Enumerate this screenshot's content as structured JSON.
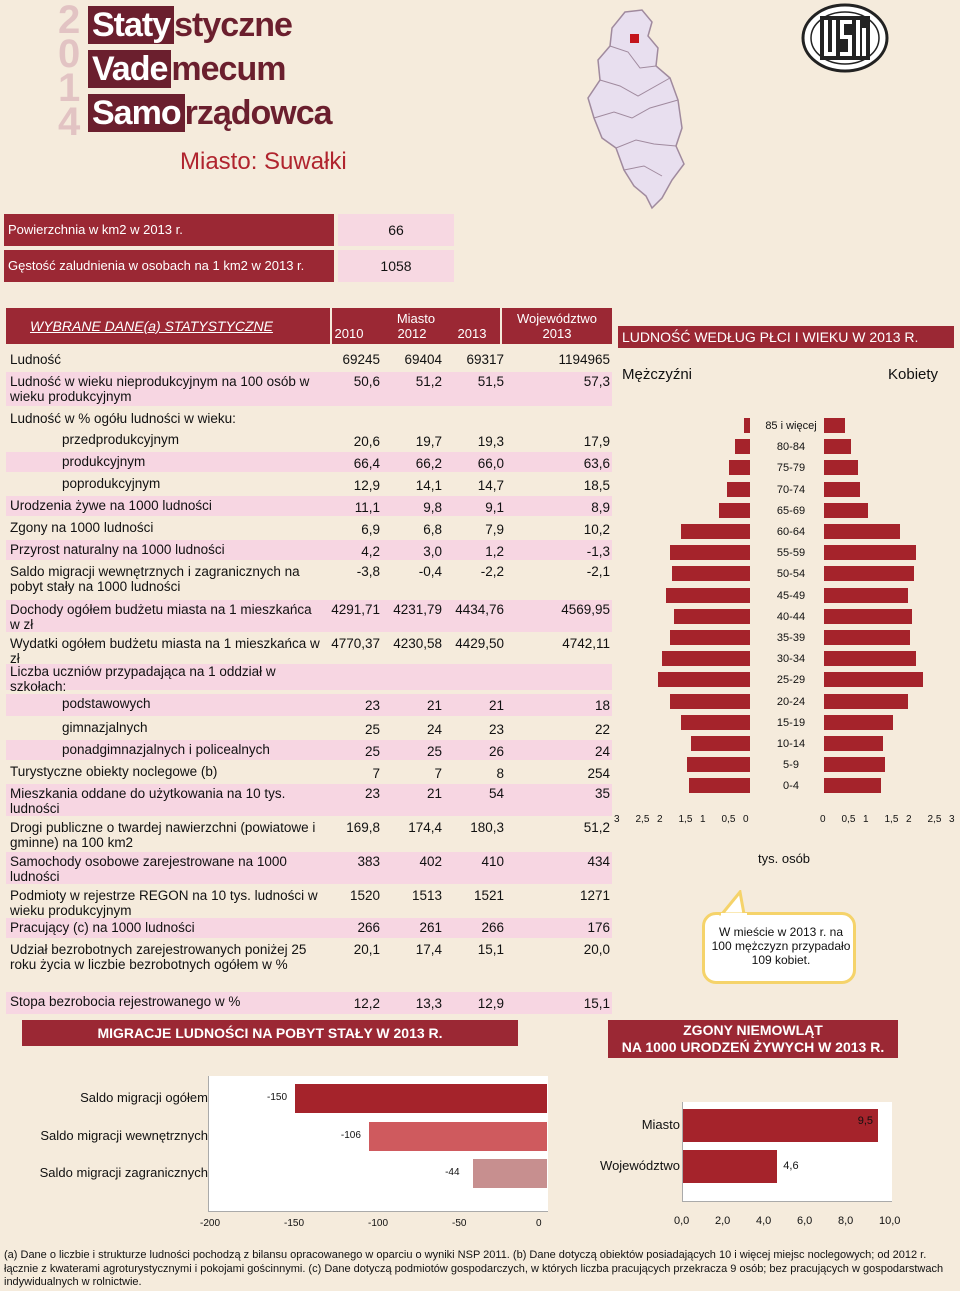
{
  "header": {
    "year_digits": [
      "2",
      "0",
      "1",
      "4"
    ],
    "logo_lines": [
      {
        "dark": "Staty",
        "rest": "styczne"
      },
      {
        "dark": "Vade",
        "rest": "mecum"
      },
      {
        "dark": "Samo",
        "rest": "rządowca"
      }
    ],
    "city_title": "Miasto: Suwałki"
  },
  "area": [
    {
      "label": "Powierzchnia w km2 w 2013 r.",
      "value": "66"
    },
    {
      "label": "Gęstość zaludnienia w osobach na 1 km2 w 2013 r.",
      "value": "1058"
    }
  ],
  "table": {
    "title": "WYBRANE DANE(a) STATYSTYCZNE",
    "group_city": "Miasto",
    "group_voiv": "Województwo",
    "years": [
      "2010",
      "2012",
      "2013"
    ],
    "voiv_year": "2013",
    "rows": [
      {
        "name": "Ludność",
        "indent": false,
        "pink": false,
        "v": [
          "69245",
          "69404",
          "69317",
          "1194965"
        ]
      },
      {
        "name": "Ludność w wieku nieprodukcyjnym na 100 osób w wieku produkcyjnym",
        "indent": false,
        "pink": true,
        "v": [
          "50,6",
          "51,2",
          "51,5",
          "57,3"
        ]
      },
      {
        "name": "Ludność w % ogółu ludności w wieku:",
        "indent": false,
        "pink": false,
        "v": [
          "",
          "",
          "",
          ""
        ]
      },
      {
        "name": "przedprodukcyjnym",
        "indent": true,
        "pink": false,
        "v": [
          "20,6",
          "19,7",
          "19,3",
          "17,9"
        ]
      },
      {
        "name": "produkcyjnym",
        "indent": true,
        "pink": true,
        "v": [
          "66,4",
          "66,2",
          "66,0",
          "63,6"
        ]
      },
      {
        "name": "poprodukcyjnym",
        "indent": true,
        "pink": false,
        "v": [
          "12,9",
          "14,1",
          "14,7",
          "18,5"
        ]
      },
      {
        "name": "Urodzenia żywe na 1000 ludności",
        "indent": false,
        "pink": true,
        "v": [
          "11,1",
          "9,8",
          "9,1",
          "8,9"
        ]
      },
      {
        "name": "Zgony na 1000 ludności",
        "indent": false,
        "pink": false,
        "v": [
          "6,9",
          "6,8",
          "7,9",
          "10,2"
        ]
      },
      {
        "name": "Przyrost naturalny na 1000 ludności",
        "indent": false,
        "pink": true,
        "v": [
          "4,2",
          "3,0",
          "1,2",
          "-1,3"
        ]
      },
      {
        "name": "Saldo migracji wewnętrznych i zagranicznych na pobyt stały na 1000 ludności",
        "indent": false,
        "pink": false,
        "v": [
          "-3,8",
          "-0,4",
          "-2,2",
          "-2,1"
        ]
      },
      {
        "name": "Dochody ogółem budżetu miasta na 1 mieszkańca w zł",
        "indent": false,
        "pink": true,
        "v": [
          "4291,71",
          "4231,79",
          "4434,76",
          "4569,95"
        ]
      },
      {
        "name": "Wydatki ogółem budżetu miasta na 1 mieszkańca w zł",
        "indent": false,
        "pink": false,
        "v": [
          "4770,37",
          "4230,58",
          "4429,50",
          "4742,11"
        ]
      },
      {
        "name": "Liczba uczniów przypadająca na 1 oddział w szkołach:",
        "indent": false,
        "pink": true,
        "v": [
          "",
          "",
          "",
          ""
        ]
      },
      {
        "name": "podstawowych",
        "indent": true,
        "pink": true,
        "v": [
          "23",
          "21",
          "21",
          "18"
        ]
      },
      {
        "name": "gimnazjalnych",
        "indent": true,
        "pink": false,
        "v": [
          "25",
          "24",
          "23",
          "22"
        ]
      },
      {
        "name": "ponadgimnazjalnych i policealnych",
        "indent": true,
        "pink": true,
        "v": [
          "25",
          "25",
          "26",
          "24"
        ]
      },
      {
        "name": "Turystyczne obiekty noclegowe (b)",
        "indent": false,
        "pink": false,
        "v": [
          "7",
          "7",
          "8",
          "254"
        ]
      },
      {
        "name": "Mieszkania oddane do użytkowania na 10 tys. ludności",
        "indent": false,
        "pink": true,
        "v": [
          "23",
          "21",
          "54",
          "35"
        ]
      },
      {
        "name": "Drogi publiczne o twardej nawierzchni (powiatowe i gminne) na 100 km2",
        "indent": false,
        "pink": false,
        "v": [
          "169,8",
          "174,4",
          "180,3",
          "51,2"
        ]
      },
      {
        "name": "Samochody osobowe zarejestrowane na 1000 ludności",
        "indent": false,
        "pink": true,
        "v": [
          "383",
          "402",
          "410",
          "434"
        ]
      },
      {
        "name": "Podmioty w rejestrze REGON na 10 tys. ludności w wieku produkcyjnym",
        "indent": false,
        "pink": false,
        "v": [
          "1520",
          "1513",
          "1521",
          "1271"
        ]
      },
      {
        "name": "Pracujący (c) na 1000 ludności",
        "indent": false,
        "pink": true,
        "v": [
          "266",
          "261",
          "266",
          "176"
        ]
      },
      {
        "name": "Udział bezrobotnych zarejestrowanych poniżej 25 roku życia w liczbie bezrobotnych ogółem w %",
        "indent": false,
        "pink": false,
        "v": [
          "20,1",
          "17,4",
          "15,1",
          "20,0"
        ]
      },
      {
        "name": "Stopa bezrobocia rejestrowanego w %",
        "indent": false,
        "pink": true,
        "v": [
          "12,2",
          "13,3",
          "12,9",
          "15,1"
        ]
      }
    ]
  },
  "pyramid": {
    "title": "LUDNOŚĆ WEDŁUG PŁCI I WIEKU W 2013 R.",
    "male_label": "Mężczyźni",
    "female_label": "Kobiety",
    "unit": "tys. osób",
    "note": "W mieście w 2013 r. na 100 mężczyzn przypadało 109 kobiet.",
    "left_ticks": [
      "3",
      "2,5",
      "2",
      "1,5",
      "1",
      "0,5",
      "0"
    ],
    "right_ticks": [
      "0",
      "0,5",
      "1",
      "1,5",
      "2",
      "2,5",
      "3"
    ]
  },
  "migration": {
    "title": "MIGRACJE LUDNOŚCI NA POBYT STAŁY W 2013 R.",
    "ticks": [
      "-200",
      "-150",
      "-100",
      "-50",
      "0"
    ]
  },
  "infant": {
    "title_line1": "ZGONY NIEMOWLĄT",
    "title_line2": "NA 1000 URODZEŃ ŻYWYCH W 2013 R.",
    "ticks": [
      "0,0",
      "2,0",
      "4,0",
      "6,0",
      "8,0",
      "10,0"
    ]
  },
  "chart_data": [
    {
      "type": "bar",
      "title": "LUDNOŚĆ WEDŁUG PŁCI I WIEKU W 2013 R.",
      "categories": [
        "85 i więcej",
        "80-84",
        "75-79",
        "70-74",
        "65-69",
        "60-64",
        "55-59",
        "50-54",
        "45-49",
        "40-44",
        "35-39",
        "30-34",
        "25-29",
        "20-24",
        "15-19",
        "10-14",
        "5-9",
        "0-4"
      ],
      "series": [
        {
          "name": "Mężczyźni",
          "values": [
            0.15,
            0.35,
            0.5,
            0.55,
            0.75,
            1.65,
            1.9,
            1.85,
            2.0,
            1.8,
            1.9,
            2.1,
            2.2,
            1.9,
            1.65,
            1.4,
            1.5,
            1.45
          ]
        },
        {
          "name": "Kobiety",
          "values": [
            0.5,
            0.65,
            0.8,
            0.85,
            1.05,
            1.8,
            2.2,
            2.15,
            2.0,
            2.1,
            2.05,
            2.2,
            2.35,
            2.0,
            1.65,
            1.4,
            1.45,
            1.35
          ]
        }
      ],
      "xlabel": "tys. osób",
      "xlim": [
        0,
        3
      ]
    },
    {
      "type": "bar",
      "title": "MIGRACJE LUDNOŚCI NA POBYT STAŁY W 2013 R.",
      "categories": [
        "Saldo migracji ogółem",
        "Saldo migracji wewnętrznych",
        "Saldo migracji zagranicznych"
      ],
      "values": [
        -150,
        -106,
        -44
      ],
      "labels": [
        "-150",
        "-106",
        "-44"
      ],
      "xlim": [
        -200,
        0
      ]
    },
    {
      "type": "bar",
      "title": "ZGONY NIEMOWLĄT NA 1000 URODZEŃ ŻYWYCH W 2013 R.",
      "categories": [
        "Miasto",
        "Województwo"
      ],
      "values": [
        9.5,
        4.6
      ],
      "labels": [
        "9,5",
        "4,6"
      ],
      "xlim": [
        0,
        10
      ]
    }
  ],
  "footnote": "(a) Dane o liczbie i strukturze ludności pochodzą z bilansu opracowanego w oparciu o wyniki NSP 2011. (b) Dane dotyczą obiektów posiadających 10 i więcej miejsc noclegowych; od 2012 r. łącznie z kwaterami agroturystycznymi i pokojami gościnnymi. (c) Dane dotyczą podmiotów gospodarczych, w których liczba pracujących przekracza 9 osób; bez pracujących w gospodarstwach indywidualnych w rolnictwie."
}
